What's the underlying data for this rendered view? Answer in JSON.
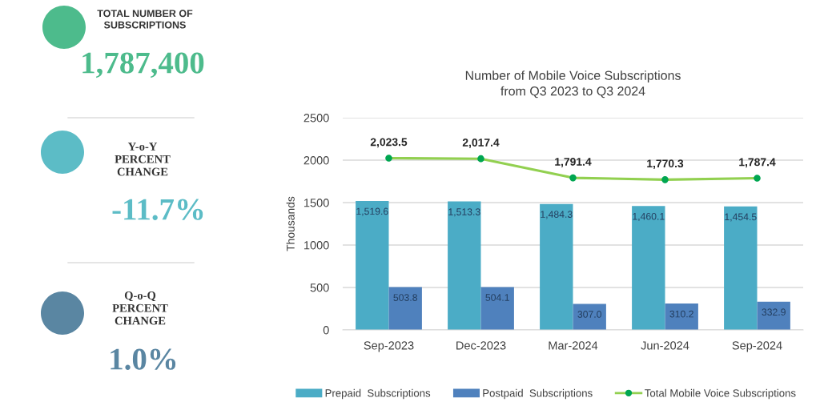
{
  "chart_data": [
    {
      "type": "other",
      "categories": [
        "TOTAL NUMBER OF\nSUBSCRIPTIONS",
        "Y-o-Y\nPERCENT\nCHANGE",
        "Q-o-Q\nPERCENT\nCHANGE"
      ],
      "value_labels": [
        "1,787,400",
        "-11.7%",
        "1.0%"
      ],
      "colors": [
        "#4dbb8c",
        "#5cbcc6",
        "#5a86a2"
      ]
    },
    {
      "type": "bar",
      "title": "Number of Mobile Voice Subscriptions\nfrom Q3 2023 to Q3 2024",
      "ylabel": "Thousands",
      "categories": [
        "Sep-2023",
        "Dec-2023",
        "Mar-2024",
        "Jun-2024",
        "Sep-2024"
      ],
      "series": [
        {
          "name": "Prepaid  Subscriptions",
          "type": "bar",
          "color": "#4bacc6",
          "values": [
            1519.6,
            1513.3,
            1484.3,
            1460.1,
            1454.5
          ],
          "value_labels": [
            "1,519.6",
            "1,513.3",
            "1,484.3",
            "1,460.1",
            "1,454.5"
          ]
        },
        {
          "name": "Postpaid  Subscriptions",
          "type": "bar",
          "color": "#4f81bd",
          "values": [
            503.8,
            504.1,
            307.0,
            310.2,
            332.9
          ],
          "value_labels": [
            "503.8",
            "504.1",
            "307.0",
            "310.2",
            "332.9"
          ]
        },
        {
          "name": "Total Mobile Voice Subscriptions",
          "type": "line",
          "color": "#92d050",
          "colors": [
            "#00a651",
            "#00a651",
            "#00a651",
            "#00a651",
            "#00a651"
          ],
          "values": [
            2023.5,
            2017.4,
            1791.4,
            1770.3,
            1787.4
          ],
          "value_labels": [
            "2,023.5",
            "2,017.4",
            "1,791.4",
            "1,770.3",
            "1,787.4"
          ]
        }
      ],
      "marker": "circle",
      "ylim": [
        0,
        2500
      ],
      "yticks": [
        0,
        500,
        1000,
        1500,
        2000,
        2500
      ],
      "grid": "y",
      "legend": "bottom"
    }
  ]
}
